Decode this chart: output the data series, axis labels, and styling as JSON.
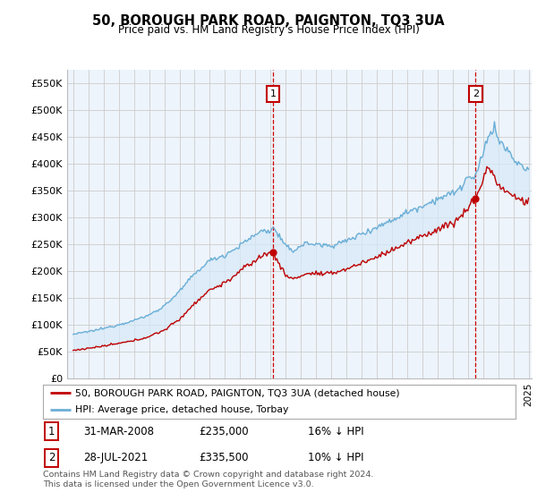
{
  "title": "50, BOROUGH PARK ROAD, PAIGNTON, TQ3 3UA",
  "subtitle": "Price paid vs. HM Land Registry's House Price Index (HPI)",
  "hpi_label": "HPI: Average price, detached house, Torbay",
  "property_label": "50, BOROUGH PARK ROAD, PAIGNTON, TQ3 3UA (detached house)",
  "hpi_color": "#6aaed6",
  "property_color": "#c00000",
  "fill_color": "#d6eaf8",
  "marker1_date": "31-MAR-2008",
  "marker1_price": 235000,
  "marker1_hpi_diff": "16% ↓ HPI",
  "marker2_date": "28-JUL-2021",
  "marker2_price": 335500,
  "marker2_hpi_diff": "10% ↓ HPI",
  "vline_color": "#cc0000",
  "ylim_min": 0,
  "ylim_max": 575000,
  "yticks": [
    0,
    50000,
    100000,
    150000,
    200000,
    250000,
    300000,
    350000,
    400000,
    450000,
    500000,
    550000
  ],
  "footnote": "Contains HM Land Registry data © Crown copyright and database right 2024.\nThis data is licensed under the Open Government Licence v3.0.",
  "background_color": "#ffffff",
  "grid_color": "#cccccc",
  "plot_bg_color": "#eef4fb"
}
